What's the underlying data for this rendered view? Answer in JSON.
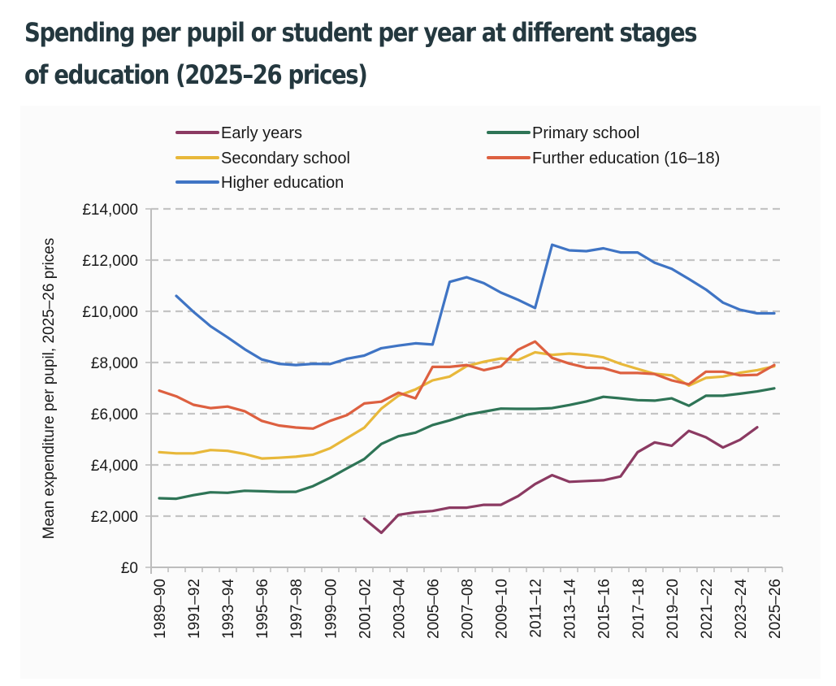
{
  "title": "Spending per pupil or student per year at different stages of education (2025–26 prices)",
  "chart_data": {
    "type": "line",
    "title": "Spending per pupil or student per year at different stages of education (2025–26 prices)",
    "xlabel": "",
    "ylabel": "Mean expenditure per pupil, 2025–26 prices",
    "ylim": [
      0,
      14000
    ],
    "yticks": [
      0,
      2000,
      4000,
      6000,
      8000,
      10000,
      12000,
      14000
    ],
    "ytick_labels": [
      "£0",
      "£2,000",
      "£4,000",
      "£6,000",
      "£8,000",
      "£10,000",
      "£12,000",
      "£14,000"
    ],
    "grid": "horizontal-dashed",
    "legend_position": "top",
    "x": [
      "1989–90",
      "1990–91",
      "1991–92",
      "1992–93",
      "1993–94",
      "1994–95",
      "1995–96",
      "1996–97",
      "1997–98",
      "1998–99",
      "1999–00",
      "2000–01",
      "2001–02",
      "2002–03",
      "2003–04",
      "2004–05",
      "2005–06",
      "2006–07",
      "2007–08",
      "2008–09",
      "2009–10",
      "2010–11",
      "2011–12",
      "2012–13",
      "2013–14",
      "2014–15",
      "2015–16",
      "2016–17",
      "2017–18",
      "2018–19",
      "2019–20",
      "2020–21",
      "2021–22",
      "2022–23",
      "2023–24",
      "2024–25",
      "2025–26"
    ],
    "xtick_labels": [
      "1989–90",
      "1991–92",
      "1993–94",
      "1995–96",
      "1997–98",
      "1999–00",
      "2001–02",
      "2003–04",
      "2005–06",
      "2007–08",
      "2009–10",
      "2011–12",
      "2013–14",
      "2015–16",
      "2017–18",
      "2019–20",
      "2021–22",
      "2023–24",
      "2025–26"
    ],
    "series": [
      {
        "name": "Early years",
        "color": "#8b3a62",
        "values": [
          null,
          null,
          null,
          null,
          null,
          null,
          null,
          null,
          null,
          null,
          null,
          null,
          1900,
          1350,
          2050,
          2150,
          2200,
          2330,
          2330,
          2440,
          2440,
          2780,
          3250,
          3600,
          3340,
          3370,
          3400,
          3550,
          4500,
          4880,
          4750,
          5330,
          5080,
          4680,
          4980,
          5470,
          null
        ]
      },
      {
        "name": "Primary school",
        "color": "#2e7456",
        "values": [
          2700,
          2680,
          2820,
          2930,
          2910,
          2990,
          2970,
          2950,
          2950,
          3170,
          3500,
          3870,
          4230,
          4820,
          5120,
          5260,
          5560,
          5740,
          5960,
          6080,
          6200,
          6190,
          6190,
          6220,
          6340,
          6480,
          6660,
          6600,
          6530,
          6510,
          6600,
          6310,
          6700,
          6700,
          6780,
          6870,
          6990
        ]
      },
      {
        "name": "Secondary school",
        "color": "#e8b83a",
        "values": [
          4500,
          4450,
          4450,
          4580,
          4550,
          4430,
          4250,
          4280,
          4320,
          4400,
          4650,
          5050,
          5450,
          6200,
          6700,
          6950,
          7300,
          7450,
          7860,
          8030,
          8160,
          8100,
          8400,
          8300,
          8350,
          8300,
          8200,
          7950,
          7750,
          7560,
          7500,
          7100,
          7400,
          7450,
          7600,
          7700,
          7850
        ]
      },
      {
        "name": "Further education (16–18)",
        "color": "#dd6040",
        "values": [
          6900,
          6680,
          6350,
          6220,
          6280,
          6100,
          5720,
          5540,
          5460,
          5420,
          5720,
          5950,
          6400,
          6470,
          6820,
          6600,
          7830,
          7830,
          7900,
          7700,
          7850,
          8500,
          8820,
          8180,
          7960,
          7800,
          7780,
          7590,
          7590,
          7550,
          7300,
          7150,
          7640,
          7640,
          7500,
          7520,
          7900
        ]
      },
      {
        "name": "Higher education",
        "color": "#3f74c4",
        "values": [
          null,
          10600,
          9980,
          9420,
          8980,
          8520,
          8120,
          7950,
          7900,
          7950,
          7940,
          8150,
          8270,
          8560,
          8660,
          8750,
          8700,
          11150,
          11330,
          11100,
          10730,
          10450,
          10130,
          12600,
          12380,
          12350,
          12460,
          12300,
          12300,
          11900,
          11660,
          11260,
          10850,
          10340,
          10060,
          9920,
          9920
        ]
      }
    ]
  }
}
